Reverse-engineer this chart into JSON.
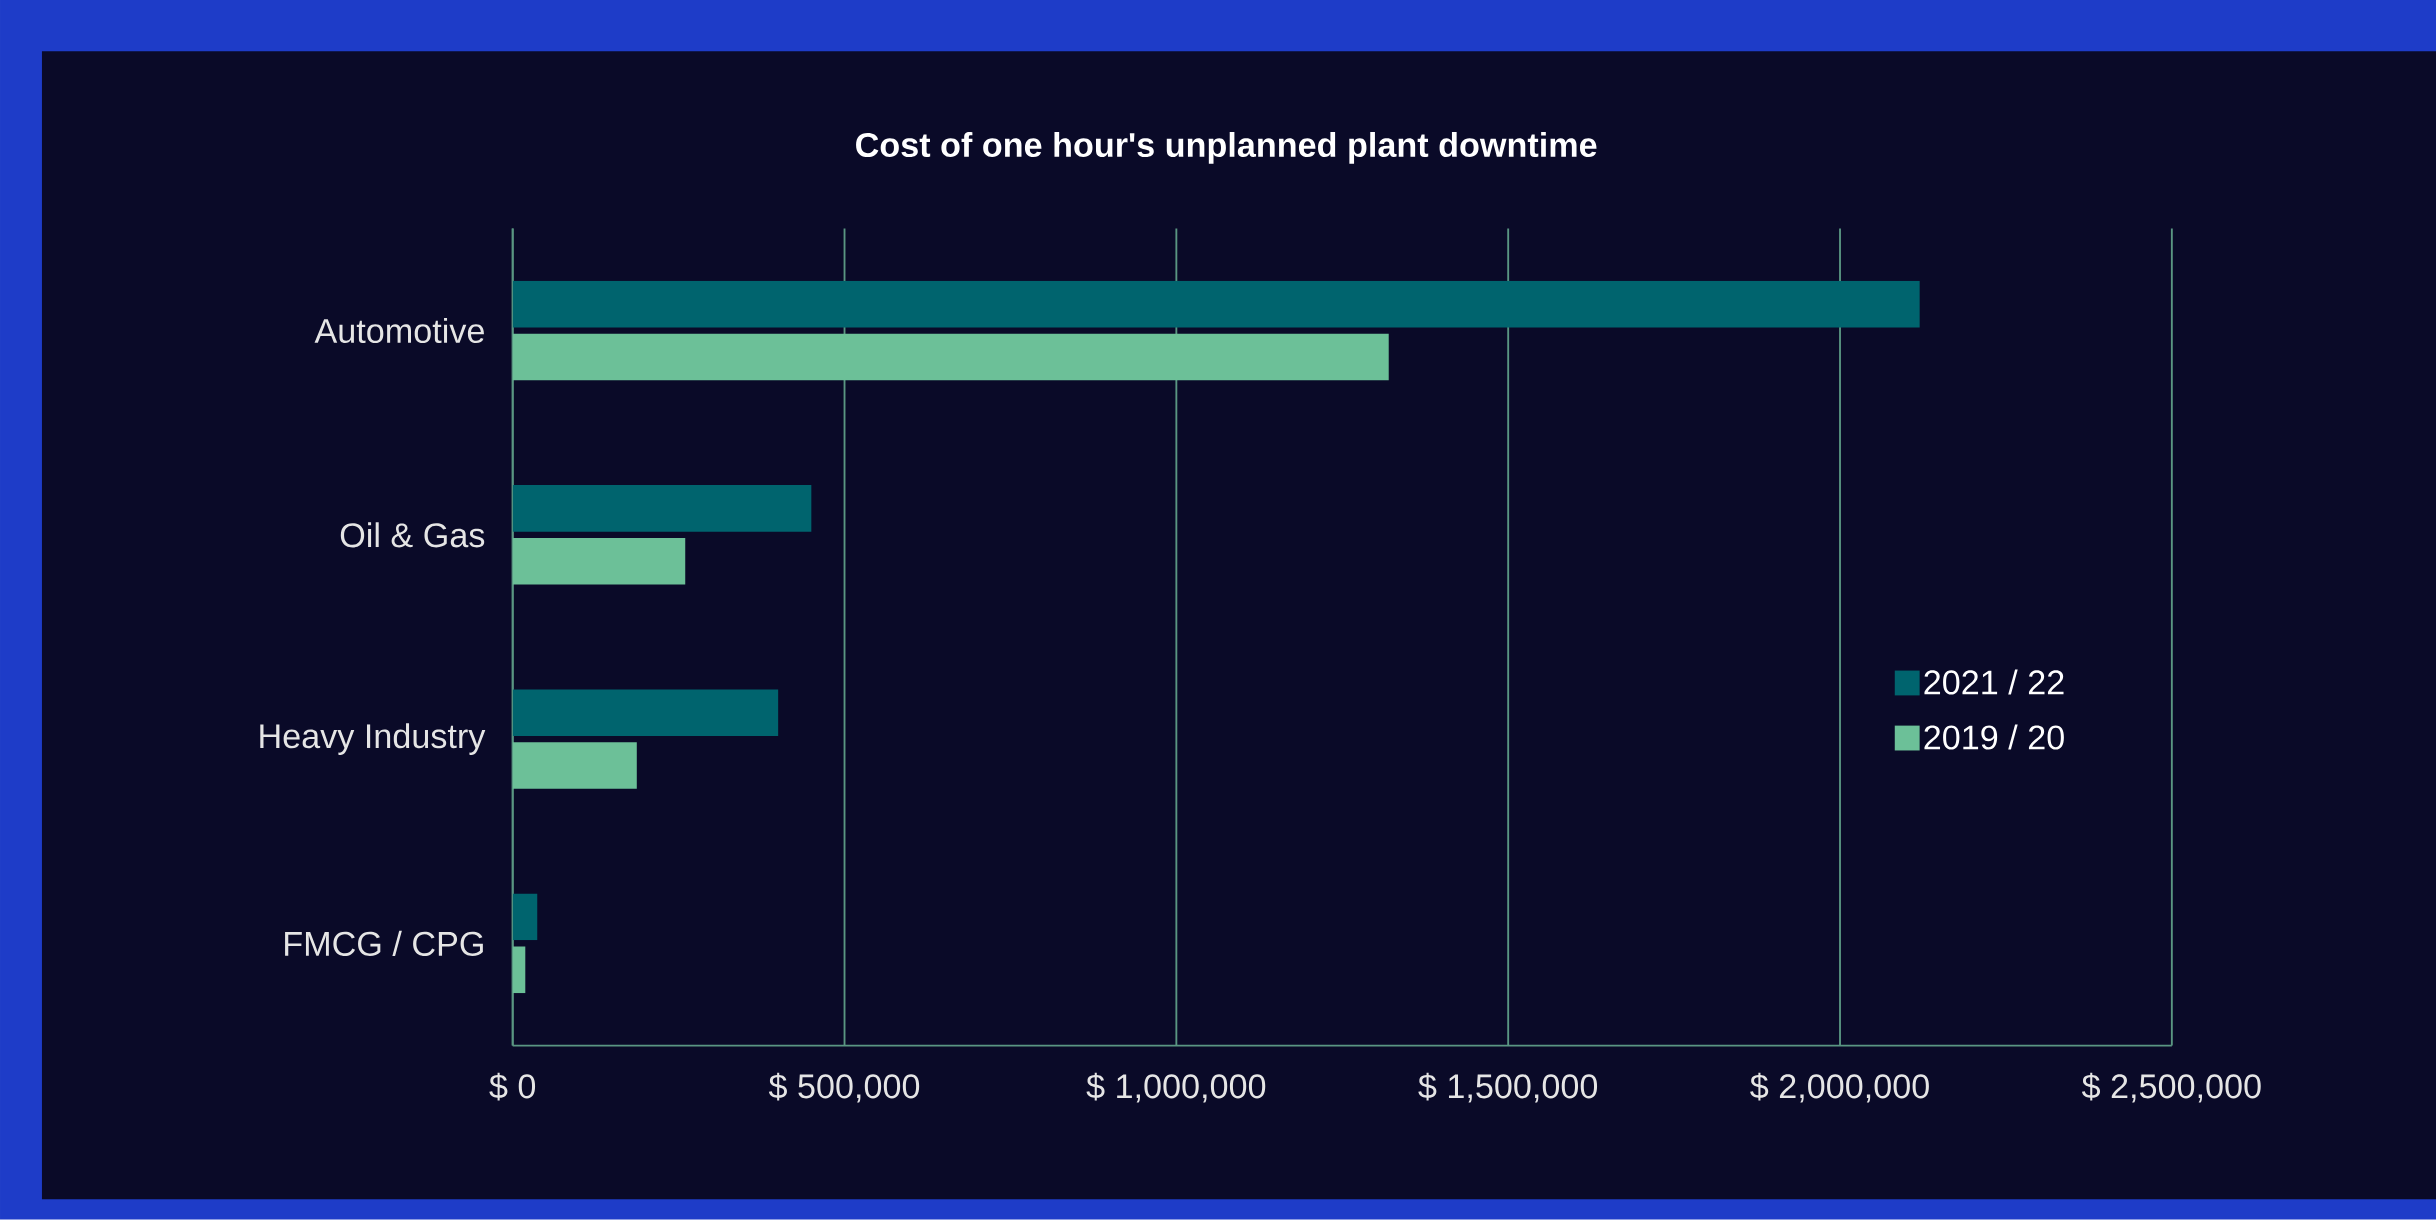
{
  "chart_data": {
    "type": "bar",
    "orientation": "horizontal",
    "title": "Cost of one hour's unplanned plant downtime",
    "categories": [
      "Automotive",
      "Oil & Gas",
      "Heavy Industry",
      "FMCG / CPG"
    ],
    "series": [
      {
        "name": "2021 / 22",
        "color": "#00646e",
        "values": [
          2120000,
          450000,
          400000,
          37000
        ]
      },
      {
        "name": "2019 / 20",
        "color": "#6cc098",
        "values": [
          1320000,
          260000,
          187000,
          19000
        ]
      }
    ],
    "xlim": [
      0,
      2500000
    ],
    "xticks": [
      {
        "value": 0,
        "label": "$ 0"
      },
      {
        "value": 500000,
        "label": "$ 500,000"
      },
      {
        "value": 1000000,
        "label": "$ 1,000,000"
      },
      {
        "value": 1500000,
        "label": "$ 1,500,000"
      },
      {
        "value": 2000000,
        "label": "$ 2,000,000"
      },
      {
        "value": 2500000,
        "label": "$ 2,500,000"
      }
    ],
    "grid": "x",
    "legend": "right"
  }
}
